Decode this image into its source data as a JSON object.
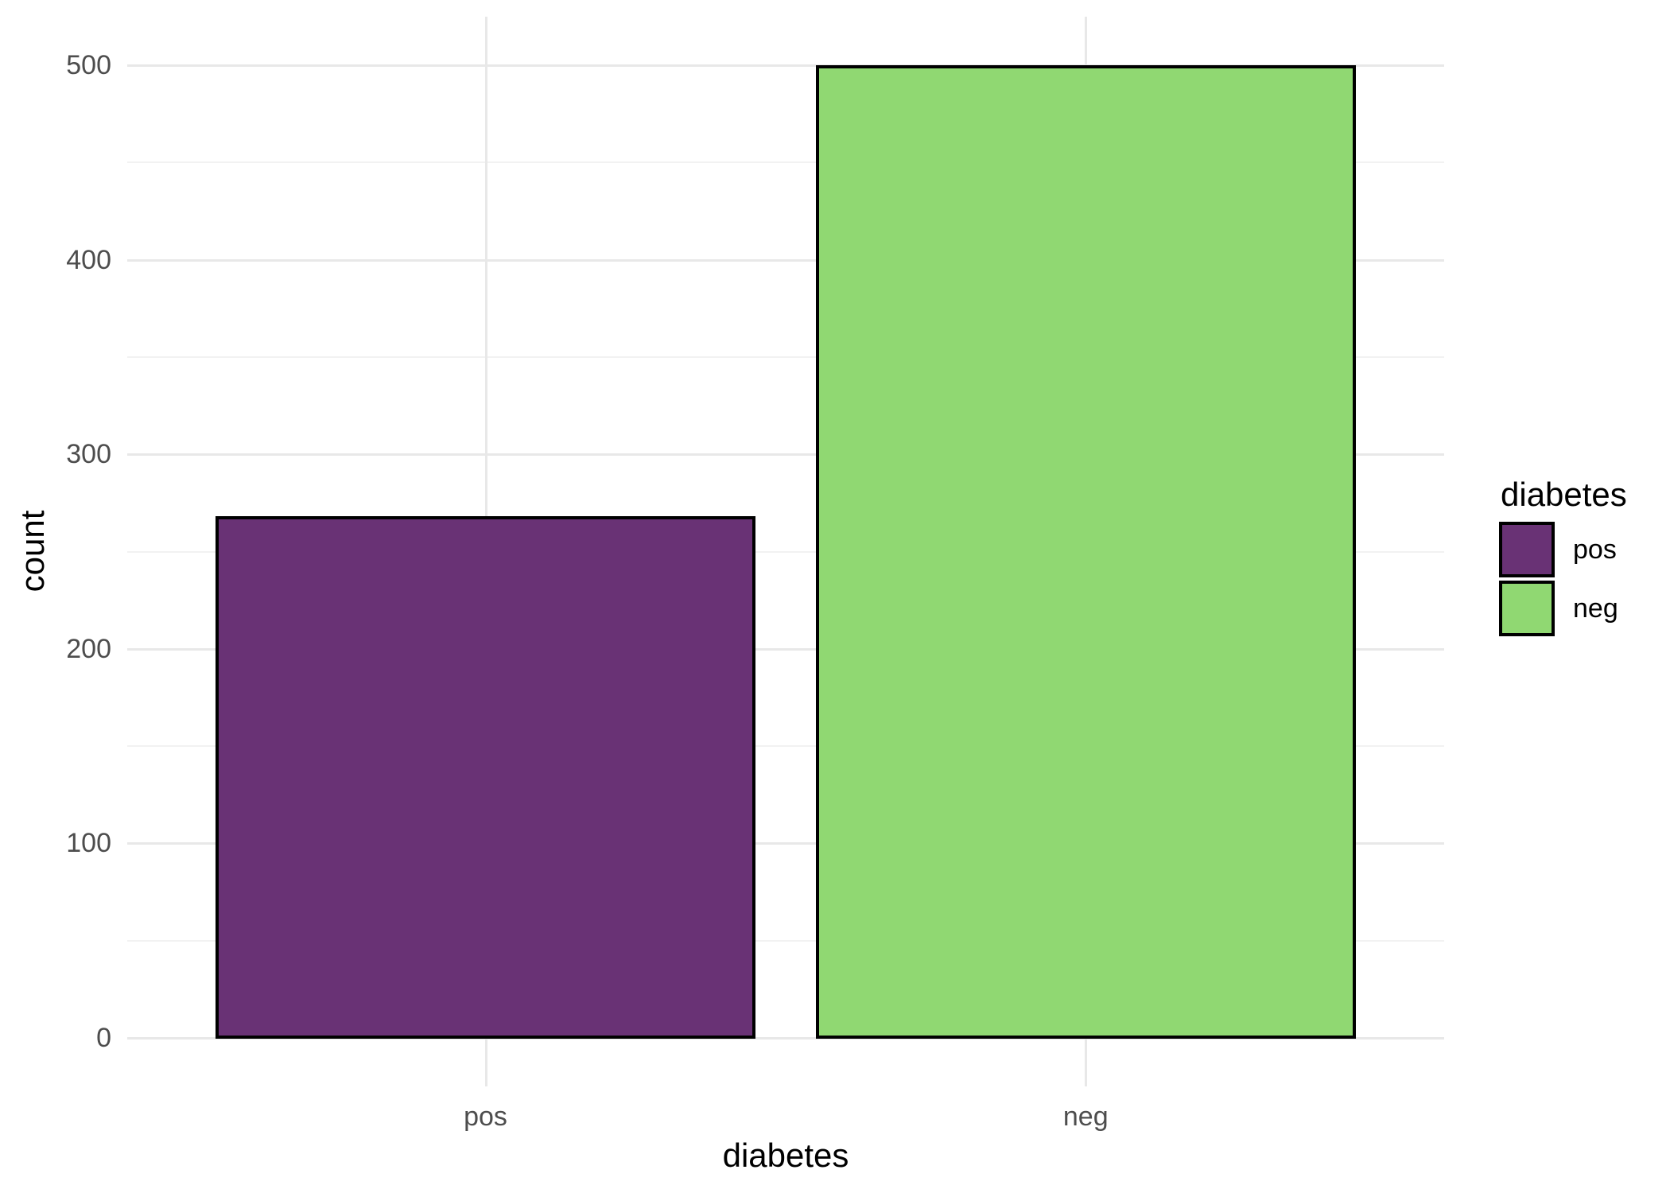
{
  "chart_data": {
    "type": "bar",
    "title": "",
    "xlabel": "diabetes",
    "ylabel": "count",
    "categories": [
      "pos",
      "neg"
    ],
    "values": [
      268,
      500
    ],
    "bar_colors": [
      "#693275",
      "#90d872"
    ],
    "bar_border_color": "#000000",
    "ylim": [
      0,
      525
    ],
    "y_major_ticks": [
      0,
      100,
      200,
      300,
      400,
      500
    ],
    "y_major_tick_labels": [
      "0",
      "100",
      "200",
      "300",
      "400",
      "500"
    ],
    "y_minor_ticks": [
      50,
      150,
      250,
      350,
      450
    ],
    "grid": true,
    "legend": {
      "title": "diabetes",
      "position": "right",
      "entries": [
        {
          "label": "pos",
          "color": "#693275"
        },
        {
          "label": "neg",
          "color": "#90d872"
        }
      ]
    },
    "colors": {
      "grid_major": "#e8e8e8",
      "grid_minor": "#f2f2f2",
      "tick_label": "#4d4d4d",
      "axis_title": "#000000",
      "background": "#ffffff"
    }
  }
}
